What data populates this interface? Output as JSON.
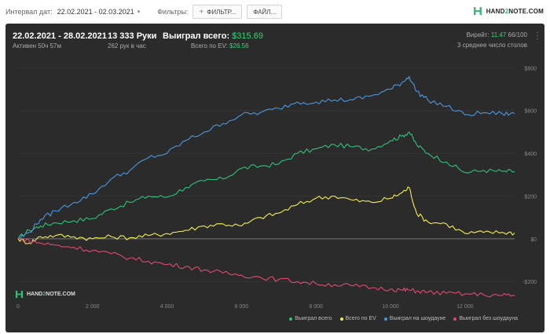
{
  "topbar": {
    "interval_label": "Интервал дат:",
    "interval_value": "22.02.2021 - 02.03.2021",
    "filters_label": "Фильтры:",
    "filter_button": "ФИЛЬТР...",
    "file_button": "ФАЙЛ...",
    "brand_pre": "HAND",
    "brand_two": "2",
    "brand_post": "NOTE.COM"
  },
  "summary": {
    "date_range": "22.02.2021 - 28.02.2021",
    "active_time": "Активен 50ч 57м",
    "hands": "13 333 Руки",
    "hands_per_hour": "262 рук в час",
    "won_label": "Выиграл всего:",
    "won_value": "$315.69",
    "ev_label": "Всего по EV:",
    "ev_value": "$26.56",
    "vpip_label": "Вирейт:",
    "vpip_value": "11.47",
    "vpip_extra": "66/100",
    "avg_tables": "3 среднее число столов"
  },
  "watermark": {
    "pre": "HAND",
    "two": "2",
    "post": "NOTE.COM"
  },
  "colors": {
    "accent": "#3cd07a",
    "total": "#2ec27a",
    "ev": "#f2ee4e",
    "showdown": "#4a98e0",
    "non_showdown": "#e04a72"
  },
  "chart_data": {
    "type": "line",
    "xlim": [
      0,
      13333
    ],
    "ylim": [
      -280,
      860
    ],
    "x_ticks": [
      0,
      2000,
      4000,
      6000,
      8000,
      10000,
      12000
    ],
    "x_tick_labels": [
      "0",
      "2 000",
      "4 000",
      "6 000",
      "8 000",
      "10 000",
      "12 000"
    ],
    "y_ticks": [
      -200,
      0,
      200,
      400,
      600,
      800
    ],
    "y_tick_labels": [
      "-$200",
      "$0",
      "$200",
      "$400",
      "$600",
      "$800"
    ],
    "legend_position": "bottom-right",
    "series": [
      {
        "name": "Выиграл всего",
        "color": "#2ec27a",
        "x": [
          0,
          300,
          600,
          1000,
          1500,
          2000,
          2500,
          3000,
          3500,
          4000,
          4500,
          5000,
          5500,
          6000,
          6500,
          7000,
          7500,
          8000,
          8500,
          9000,
          9500,
          10000,
          10300,
          10500,
          10700,
          11000,
          11500,
          12000,
          12500,
          13000,
          13333
        ],
        "y": [
          0,
          40,
          60,
          75,
          85,
          95,
          140,
          170,
          200,
          195,
          240,
          270,
          280,
          330,
          340,
          350,
          400,
          420,
          440,
          430,
          420,
          460,
          480,
          500,
          440,
          400,
          360,
          310,
          320,
          315,
          315
        ]
      },
      {
        "name": "Всего по EV",
        "color": "#f2ee4e",
        "x": [
          0,
          300,
          600,
          1000,
          1500,
          2000,
          2500,
          3000,
          3500,
          4000,
          4500,
          5000,
          5500,
          6000,
          6500,
          7000,
          7500,
          8000,
          8500,
          9000,
          9500,
          10000,
          10300,
          10500,
          10700,
          11000,
          11500,
          12000,
          12500,
          13000,
          13333
        ],
        "y": [
          0,
          -20,
          10,
          15,
          10,
          0,
          10,
          5,
          15,
          25,
          40,
          60,
          70,
          60,
          100,
          120,
          160,
          190,
          200,
          180,
          170,
          190,
          215,
          240,
          120,
          80,
          70,
          25,
          30,
          30,
          27
        ]
      },
      {
        "name": "Выиграл на шоудауне",
        "color": "#4a98e0",
        "x": [
          0,
          300,
          600,
          1000,
          1500,
          2000,
          2500,
          3000,
          3500,
          4000,
          4500,
          5000,
          5500,
          6000,
          6500,
          7000,
          7500,
          8000,
          8500,
          9000,
          9500,
          10000,
          10300,
          10500,
          10700,
          11000,
          11500,
          12000,
          12500,
          13000,
          13333
        ],
        "y": [
          0,
          30,
          90,
          130,
          170,
          210,
          280,
          320,
          380,
          400,
          460,
          500,
          540,
          580,
          590,
          610,
          640,
          640,
          650,
          650,
          670,
          700,
          730,
          760,
          690,
          650,
          620,
          580,
          590,
          585,
          585
        ]
      },
      {
        "name": "Выиграл без шоудауна",
        "color": "#e04a72",
        "x": [
          0,
          300,
          600,
          1000,
          1500,
          2000,
          2500,
          3000,
          3500,
          4000,
          4500,
          5000,
          5500,
          6000,
          6500,
          7000,
          7500,
          8000,
          8500,
          9000,
          9500,
          10000,
          10300,
          10500,
          10700,
          11000,
          11500,
          12000,
          12500,
          13000,
          13333
        ],
        "y": [
          0,
          -10,
          -20,
          -30,
          -40,
          -55,
          -70,
          -90,
          -105,
          -120,
          -130,
          -145,
          -160,
          -170,
          -180,
          -190,
          -200,
          -210,
          -215,
          -220,
          -230,
          -235,
          -240,
          -240,
          -245,
          -250,
          -255,
          -258,
          -262,
          -265,
          -265
        ]
      }
    ]
  }
}
